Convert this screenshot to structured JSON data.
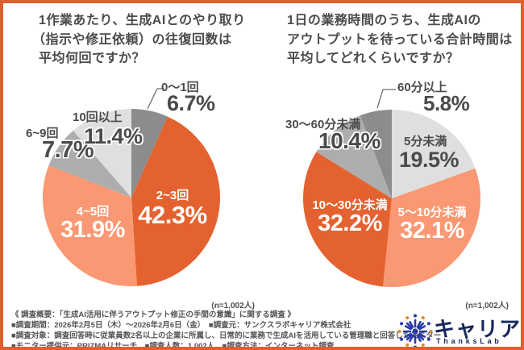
{
  "frame": {
    "border_color": "#DF5F2D",
    "background": "#FFFFFF"
  },
  "palette": {
    "orange_dark": "#E4622F",
    "orange_light": "#FA9873",
    "gray_light": "#DFDFDF",
    "gray_mid": "#ADADAD",
    "gray_dark": "#8C8C8C",
    "text_dark": "#4B4B4B",
    "logo_blue": "#2B3BA8",
    "logo_orange": "#E2862B",
    "logo_navy": "#16275B"
  },
  "chart_data": [
    {
      "type": "pie",
      "title": "1作業あたり、生成AIとのやり取り（指示や修正依頼）の往復回数は平均何回ですか？",
      "title_lines": [
        "1作業あたり、生成AIとのやり取り",
        "（指示や修正依頼）の往復回数は",
        "平均何回ですか？"
      ],
      "n_label": "(n=1,002人)",
      "start_angle_deg": 0,
      "direction": "clockwise",
      "slices": [
        {
          "label": "0〜1回",
          "value": 6.7,
          "display": "6.7%",
          "color": "#8C8C8C"
        },
        {
          "label": "2~3回",
          "value": 42.3,
          "display": "42.3%",
          "color": "#E4622F"
        },
        {
          "label": "4~5回",
          "value": 31.9,
          "display": "31.9%",
          "color": "#FA9873"
        },
        {
          "label": "6~9回",
          "value": 7.7,
          "display": "7.7%",
          "color": "#ADADAD"
        },
        {
          "label": "10回以上",
          "value": 11.4,
          "display": "11.4%",
          "color": "#DFDFDF"
        }
      ]
    },
    {
      "type": "pie",
      "title": "1日の業務時間のうち、生成AIのアウトプットを待っている合計時間は平均してどれくらいですか？",
      "title_lines": [
        "1日の業務時間のうち、生成AIの",
        "アウトプットを待っている合計時間は",
        "平均してどれくらいですか？"
      ],
      "n_label": "(n=1,002人)",
      "start_angle_deg": 0,
      "direction": "clockwise",
      "slices": [
        {
          "label": "5分未満",
          "value": 19.5,
          "display": "19.5%",
          "color": "#DFDFDF"
        },
        {
          "label": "5〜10分未満",
          "value": 32.1,
          "display": "32.1%",
          "color": "#FA9873"
        },
        {
          "label": "10〜30分未満",
          "value": 32.2,
          "display": "32.2%",
          "color": "#E4622F"
        },
        {
          "label": "30〜60分未満",
          "value": 10.4,
          "display": "10.4%",
          "color": "#ADADAD"
        },
        {
          "label": "60分以上",
          "value": 5.8,
          "display": "5.8%",
          "color": "#8C8C8C"
        }
      ]
    }
  ],
  "footer": {
    "lines": [
      "《 調査概要：「生成AI活用に伴うアウトプット修正の手間の意識」に関する調査 》",
      "■調査期間：2026年2月5日（木）〜2026年2月6日（金）　■調査元：サンクスラボキャリア株式会社",
      "■調査対象：調査回答時に従業員数2名以上の企業に所属し、日常的に業務で生成AIを活用している管理職と回答したモニター",
      "■モニター提供元：PRIZMAリサーチ　■調査人数：1,002人　■調査方法：インターネット調査"
    ]
  },
  "logo": {
    "wordmark": "キャリア",
    "subtext": "ThanksLab"
  }
}
